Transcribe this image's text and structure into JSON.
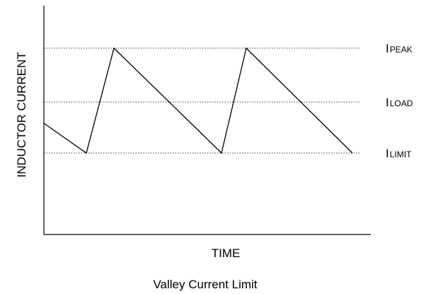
{
  "diagram": {
    "y_axis_label": "INDUCTOR CURRENT",
    "x_axis_label": "TIME",
    "caption": "Valley Current Limit",
    "levels": [
      {
        "id": "peak",
        "main": "I",
        "sub": "PEAK"
      },
      {
        "id": "load",
        "main": "I",
        "sub": "LOAD"
      },
      {
        "id": "limit",
        "main": "I",
        "sub": "LIMIT"
      }
    ]
  }
}
